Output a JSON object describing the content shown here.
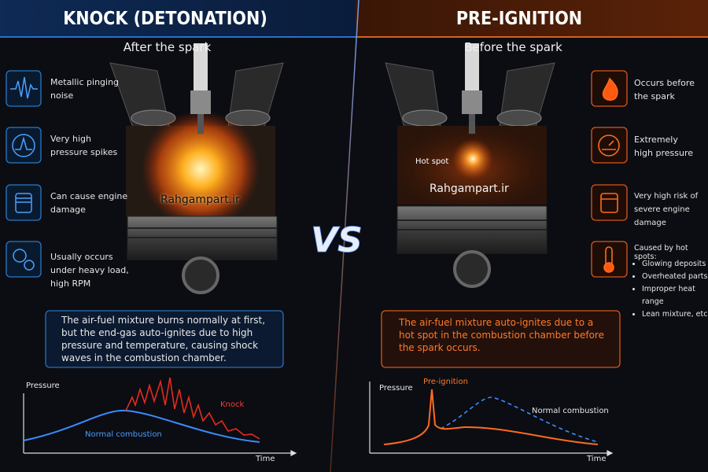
{
  "left": {
    "title": "KNOCK (DETONATION)",
    "subtitle": "After the spark",
    "features": [
      "Metallic pinging noise",
      "Very high pressure spikes",
      "Can cause engine damage",
      "Usually occurs under heavy load, high RPM"
    ],
    "watermark": "Rahgampart.ir",
    "description": "The air-fuel mixture burns normally at first, but the end-gas auto-ignites due to high pressure and temperature, causing shock waves in the combustion chamber.",
    "graph": {
      "y_label": "Pressure",
      "x_label": "Time",
      "normal_label": "Normal combustion",
      "abnormal_label": "Knock"
    }
  },
  "vs": "VS",
  "right": {
    "title": "PRE-IGNITION",
    "subtitle": "Before the spark",
    "features": [
      "Occurs before the spark",
      "Extremely high pressure",
      "Very high risk of severe engine damage"
    ],
    "causes": {
      "title": "Caused by hot spots:",
      "items": [
        "Glowing deposits",
        "Overheated parts",
        "Improper heat range",
        "Lean mixture, etc."
      ]
    },
    "hot_spot": "Hot spot",
    "watermark": "Rahgampart.ir",
    "description": "The air-fuel mixture auto-ignites due to a hot spot in the combustion chamber before the spark occurs.",
    "graph": {
      "y_label": "Pressure",
      "x_label": "Time",
      "normal_label": "Normal combustion",
      "abnormal_label": "Pre-ignition"
    }
  }
}
